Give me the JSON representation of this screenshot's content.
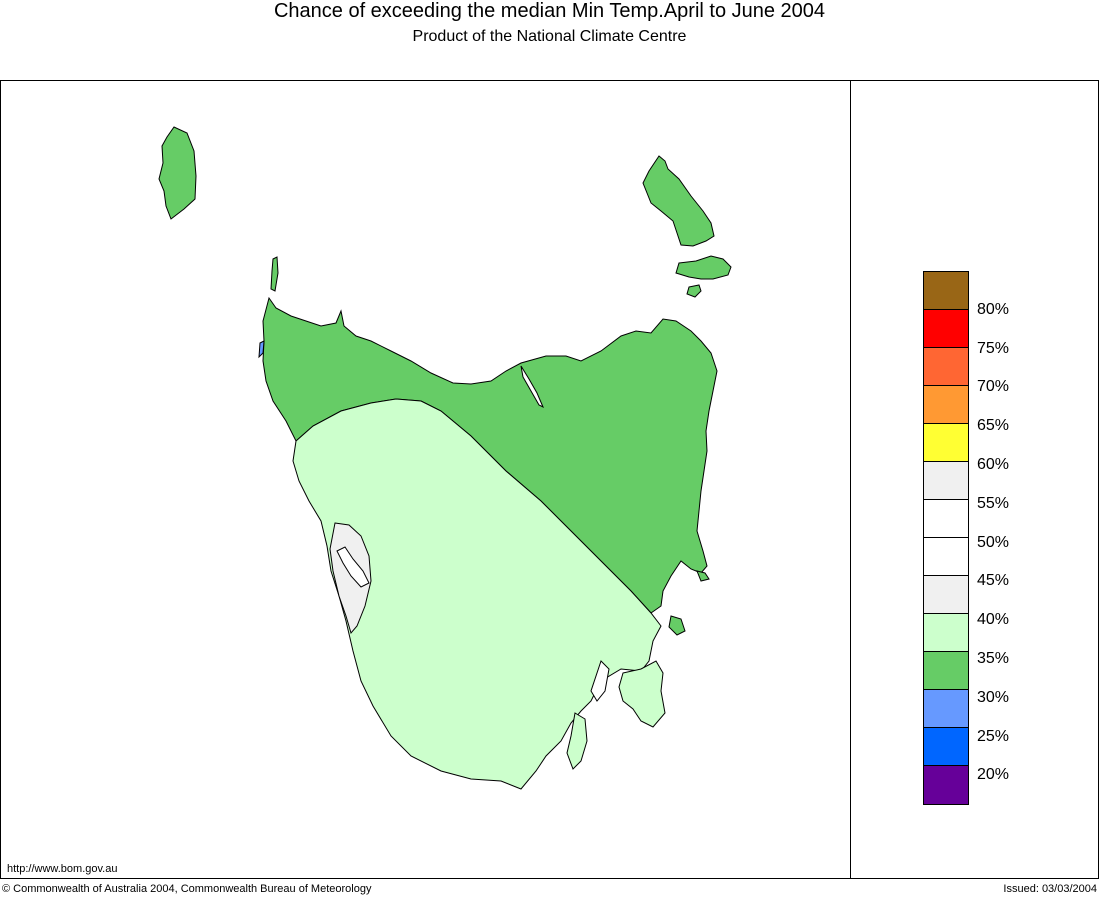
{
  "title": "Chance of exceeding the median Min Temp.April to June 2004",
  "subtitle": "Product of the National Climate Centre",
  "url": "http://www.bom.gov.au",
  "copyright": "© Commonwealth of Australia 2004, Commonwealth Bureau of Meteorology",
  "issued": "Issued: 03/03/2004",
  "map": {
    "region": "Tasmania",
    "zones": [
      {
        "name": "north",
        "range": "30-35%",
        "color": "#66cc66"
      },
      {
        "name": "south-west",
        "range": "35-40%",
        "color": "#ccffcc"
      },
      {
        "name": "west-coast-pocket",
        "range": "40-45%",
        "color": "#f0f0f0"
      },
      {
        "name": "north-west-tip",
        "range": "25-30%",
        "color": "#6699ff"
      }
    ]
  },
  "legend": {
    "colors": [
      "#996616",
      "#ff0000",
      "#ff6633",
      "#ff9933",
      "#ffff33",
      "#f0f0f0",
      "#ffffff",
      "#ffffff",
      "#f0f0f0",
      "#ccffcc",
      "#66cc66",
      "#6699ff",
      "#0066ff",
      "#660099"
    ],
    "labels": [
      "80%",
      "75%",
      "70%",
      "65%",
      "60%",
      "55%",
      "50%",
      "45%",
      "40%",
      "35%",
      "30%",
      "25%",
      "20%"
    ]
  }
}
